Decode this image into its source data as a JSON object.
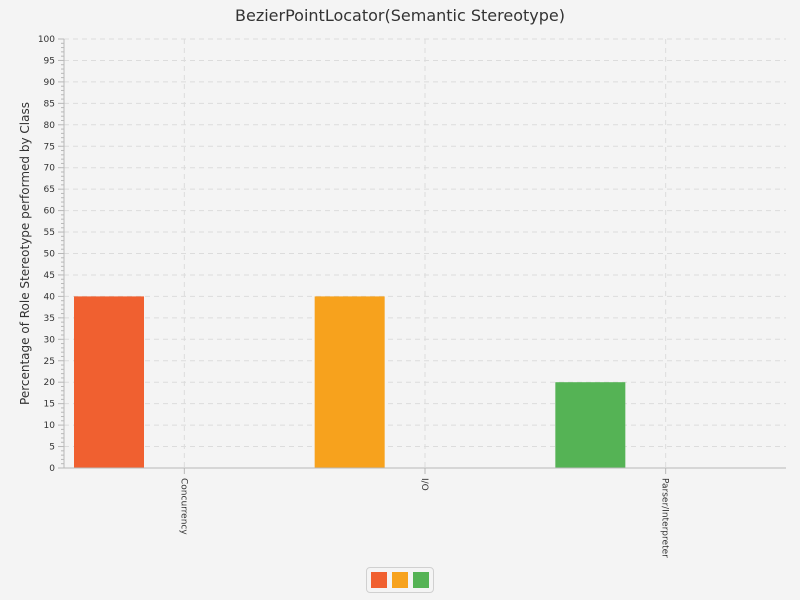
{
  "chart_data": {
    "type": "bar",
    "title": "BezierPointLocator(Semantic Stereotype)",
    "xlabel": "",
    "ylabel": "Percentage of Role Stereotype performed by Class",
    "categories": [
      "Concurrency",
      "I/O",
      "Parser/Interpreter"
    ],
    "values": [
      40,
      40,
      20
    ],
    "colors": [
      "#f06030",
      "#f7a21d",
      "#55b355"
    ],
    "ylim": [
      0,
      100
    ],
    "ytick_step": 5,
    "grid": true,
    "legend": "bottom-center"
  }
}
